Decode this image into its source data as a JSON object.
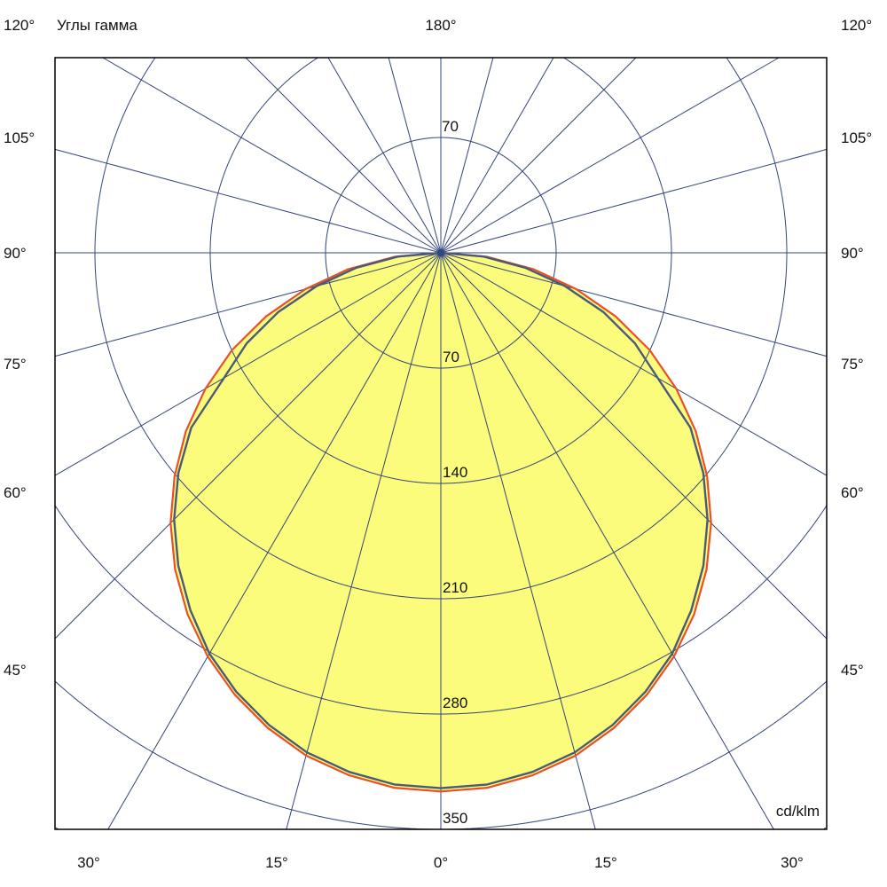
{
  "chart_data": {
    "type": "polar-line",
    "title": "Углы гамма",
    "unit_label": "cd/klm",
    "radial_ticks": [
      70,
      140,
      210,
      280,
      350
    ],
    "top_ring_label": "70",
    "top_angle_label": "180°",
    "side_angle_labels": [
      "120°",
      "105°",
      "90°",
      "75°",
      "60°",
      "45°"
    ],
    "bottom_angle_labels": [
      "30°",
      "15°",
      "0°",
      "15°",
      "30°"
    ],
    "angular_grid_step_deg": 15,
    "gamma_deg": [
      0,
      5,
      10,
      15,
      20,
      25,
      30,
      35,
      40,
      45,
      50,
      55,
      60,
      65,
      70,
      75,
      80,
      85,
      90
    ],
    "series": [
      {
        "color": "#e8502a",
        "values": [
          327,
          326,
          322,
          316,
          307,
          296,
          283,
          268,
          251,
          232,
          211,
          189,
          165,
          140,
          113,
          85,
          57,
          28,
          0
        ]
      },
      {
        "color": "#4a5a78",
        "values": [
          325,
          324,
          320,
          314,
          305,
          294,
          281,
          265,
          248,
          229,
          208,
          185,
          152,
          130,
          105,
          78,
          52,
          26,
          0
        ]
      }
    ],
    "fill_color": "#fcfc7c",
    "grid_color": "#34447a",
    "symmetric": true
  }
}
